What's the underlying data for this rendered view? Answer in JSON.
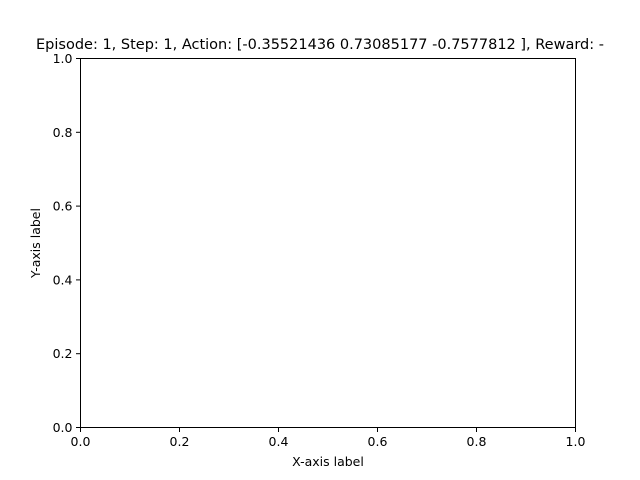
{
  "chart_data": {
    "type": "scatter",
    "title": "Episode: 1, Step: 1, Action: [-0.35521436  0.73085177 -0.7577812 ], Reward: -",
    "xlabel": "X-axis label",
    "ylabel": "Y-axis label",
    "xlim": [
      0.0,
      1.0
    ],
    "ylim": [
      0.0,
      1.0
    ],
    "xticks": [
      "0.0",
      "0.2",
      "0.4",
      "0.6",
      "0.8",
      "1.0"
    ],
    "yticks": [
      "0.0",
      "0.2",
      "0.4",
      "0.6",
      "0.8",
      "1.0"
    ],
    "grid": false,
    "series": []
  },
  "colors": {
    "axes": "#000000",
    "background": "#ffffff"
  }
}
